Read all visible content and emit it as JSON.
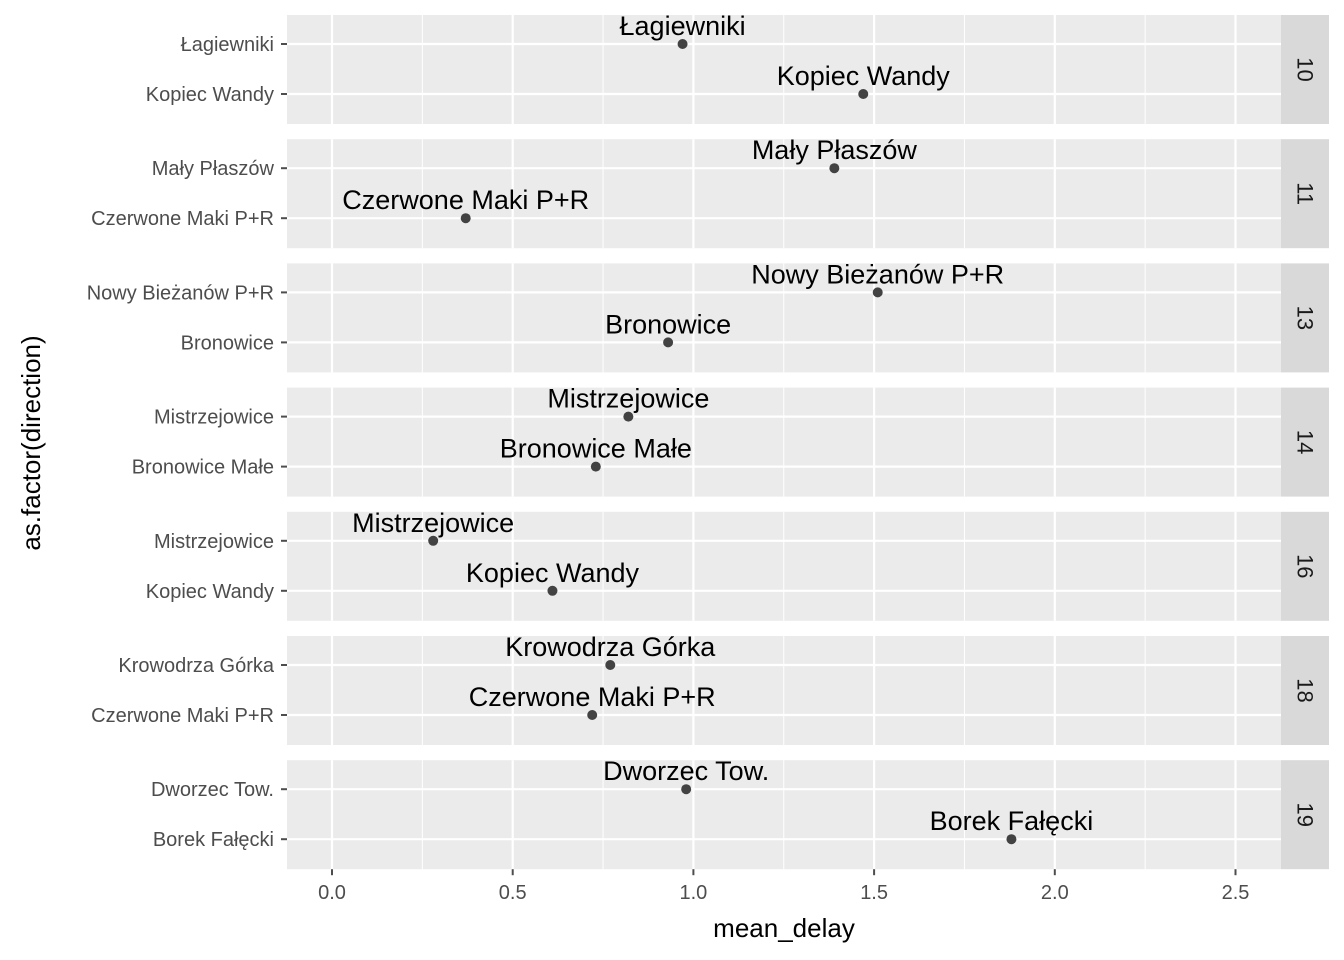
{
  "chart_data": {
    "type": "scatter",
    "xlabel": "mean_delay",
    "ylabel": "as.factor(direction)",
    "xlim": [
      -0.12,
      2.62
    ],
    "x_ticks": [
      "0.0",
      "0.5",
      "1.0",
      "1.5",
      "2.0",
      "2.5"
    ],
    "x_tick_values": [
      0,
      0.5,
      1.0,
      1.5,
      2.0,
      2.5
    ],
    "grid": true,
    "facet_strip_position": "right",
    "colors": {
      "panel_bg": "#ebebeb",
      "grid": "#ffffff",
      "strip_bg": "#d9d9d9",
      "point": "#333333",
      "tick": "#4d4d4d"
    },
    "panels": [
      {
        "strip": "10",
        "rows": [
          {
            "direction": "Łagiewniki",
            "label": "Łagiewniki",
            "mean_delay": 0.97
          },
          {
            "direction": "Kopiec Wandy",
            "label": "Kopiec Wandy",
            "mean_delay": 1.47
          }
        ]
      },
      {
        "strip": "11",
        "rows": [
          {
            "direction": "Mały Płaszów",
            "label": "Mały Płaszów",
            "mean_delay": 1.39
          },
          {
            "direction": "Czerwone Maki P+R",
            "label": "Czerwone Maki P+R",
            "mean_delay": 0.37
          }
        ]
      },
      {
        "strip": "13",
        "rows": [
          {
            "direction": "Nowy Bieżanów P+R",
            "label": "Nowy Bieżanów P+R",
            "mean_delay": 1.51
          },
          {
            "direction": "Bronowice",
            "label": "Bronowice",
            "mean_delay": 0.93
          }
        ]
      },
      {
        "strip": "14",
        "rows": [
          {
            "direction": "Mistrzejowice",
            "label": "Mistrzejowice",
            "mean_delay": 0.82
          },
          {
            "direction": "Bronowice Małe",
            "label": "Bronowice Małe",
            "mean_delay": 0.73
          }
        ]
      },
      {
        "strip": "16",
        "rows": [
          {
            "direction": "Mistrzejowice",
            "label": "Mistrzejowice",
            "mean_delay": 0.28
          },
          {
            "direction": "Kopiec Wandy",
            "label": "Kopiec Wandy",
            "mean_delay": 0.61
          }
        ]
      },
      {
        "strip": "18",
        "rows": [
          {
            "direction": "Krowodrza Górka",
            "label": "Krowodrza Górka",
            "mean_delay": 0.77
          },
          {
            "direction": "Czerwone Maki P+R",
            "label": "Czerwone Maki P+R",
            "mean_delay": 0.72
          }
        ]
      },
      {
        "strip": "19",
        "rows": [
          {
            "direction": "Dworzec Tow.",
            "label": "Dworzec Tow.",
            "mean_delay": 0.98
          },
          {
            "direction": "Borek Fałęcki",
            "label": "Borek Fałęcki",
            "mean_delay": 1.88
          }
        ]
      }
    ]
  }
}
